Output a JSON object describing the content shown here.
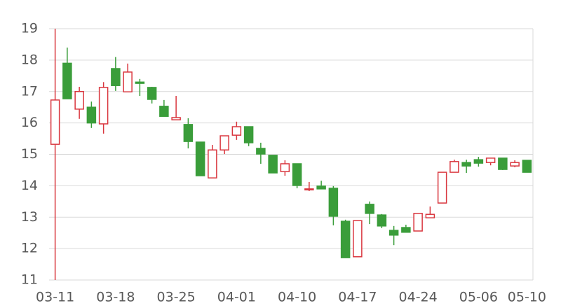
{
  "chart_data": {
    "type": "candlestick",
    "categories": [
      "03-11",
      null,
      null,
      null,
      null,
      "03-18",
      null,
      null,
      null,
      null,
      "03-25",
      null,
      null,
      null,
      null,
      "04-01",
      null,
      null,
      null,
      null,
      "04-10",
      null,
      null,
      null,
      null,
      "04-17",
      null,
      null,
      null,
      null,
      "04-24",
      null,
      null,
      null,
      null,
      "05-06",
      null,
      null,
      null,
      "05-10"
    ],
    "open": [
      15.32,
      17.9,
      16.44,
      16.5,
      15.97,
      17.73,
      16.99,
      17.3,
      17.13,
      16.53,
      16.1,
      15.95,
      15.39,
      14.25,
      15.14,
      15.61,
      15.88,
      15.19,
      14.97,
      14.45,
      14.7,
      13.87,
      13.99,
      13.92,
      12.87,
      11.74,
      13.41,
      13.07,
      12.58,
      12.67,
      12.56,
      12.98,
      13.45,
      14.43,
      14.74,
      14.83,
      14.74,
      14.88,
      14.63,
      14.81
    ],
    "high": [
      19.0,
      18.4,
      17.15,
      16.68,
      17.3,
      18.1,
      17.89,
      17.4,
      17.15,
      16.73,
      16.86,
      16.15,
      15.39,
      15.3,
      15.59,
      16.04,
      15.88,
      15.37,
      14.97,
      14.81,
      14.7,
      14.12,
      14.16,
      13.99,
      12.92,
      12.89,
      13.5,
      13.1,
      12.72,
      12.76,
      13.12,
      13.34,
      14.43,
      14.83,
      14.83,
      14.92,
      14.88,
      14.88,
      14.81,
      14.81
    ],
    "low": [
      11.0,
      16.77,
      16.13,
      15.84,
      15.66,
      17.02,
      16.99,
      16.86,
      16.62,
      16.21,
      16.1,
      15.19,
      14.32,
      14.25,
      15.01,
      15.46,
      15.26,
      14.7,
      14.41,
      14.32,
      13.92,
      13.83,
      13.9,
      12.74,
      11.71,
      11.74,
      12.78,
      12.65,
      12.11,
      12.52,
      12.56,
      12.98,
      13.45,
      14.43,
      14.41,
      14.61,
      14.65,
      14.5,
      14.59,
      14.43
    ],
    "close": [
      16.73,
      16.77,
      17.0,
      16.0,
      17.13,
      17.19,
      17.62,
      17.26,
      16.75,
      16.21,
      16.17,
      15.41,
      14.32,
      15.14,
      15.59,
      15.88,
      15.37,
      15.01,
      14.41,
      14.7,
      14.01,
      13.9,
      13.9,
      13.03,
      11.71,
      12.89,
      13.12,
      12.72,
      12.43,
      12.52,
      13.12,
      13.09,
      14.43,
      14.77,
      14.63,
      14.72,
      14.88,
      14.52,
      14.74,
      14.43
    ],
    "up_color": "#d9363e",
    "down_color": "#3a9d3a",
    "ylim": [
      11,
      19
    ],
    "yticks": [
      11,
      12,
      13,
      14,
      15,
      16,
      17,
      18,
      19
    ],
    "grid": true
  }
}
